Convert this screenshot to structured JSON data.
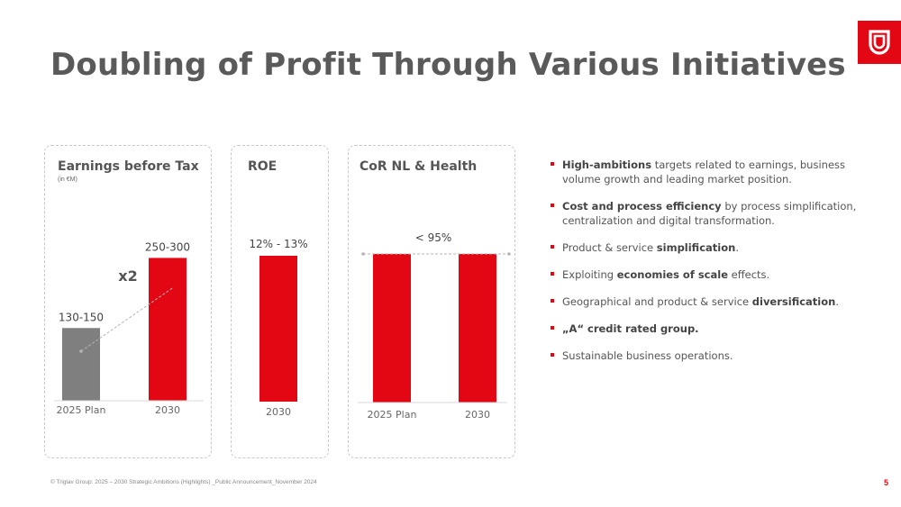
{
  "slide": {
    "title": "Doubling of Profit Through Various Initiatives",
    "footer": "© Triglav Group: 2025 – 2030 Strategic Ambitions (Highlights) _Public Announcement_November 2024",
    "page_number": "5",
    "accent_color": "#e30613"
  },
  "logo": {
    "icon": "triglav-logo-icon"
  },
  "panels": {
    "ebt": {
      "title": "Earnings before Tax",
      "subtitle": "(in €M)",
      "multiplier_label": "x2"
    },
    "roe": {
      "title": "ROE"
    },
    "cor": {
      "title": "CoR NL & Health"
    }
  },
  "chart_data": [
    {
      "type": "bar",
      "title": "Earnings before Tax",
      "subtitle": "(in €M)",
      "categories": [
        "2025 Plan",
        "2030"
      ],
      "data_labels": [
        "130-150",
        "250-300"
      ],
      "values": [
        140,
        275
      ],
      "ylim": [
        0,
        300
      ],
      "colors": [
        "#7f7f7f",
        "#e30613"
      ],
      "annotation": "x2"
    },
    {
      "type": "bar",
      "title": "ROE",
      "categories": [
        "2030"
      ],
      "data_labels": [
        "12% - 13%"
      ],
      "values": [
        12.5
      ],
      "colors": [
        "#e30613"
      ]
    },
    {
      "type": "bar",
      "title": "CoR NL & Health",
      "categories": [
        "2025 Plan",
        "2030"
      ],
      "data_labels": [
        "< 95%"
      ],
      "values": [
        95,
        95
      ],
      "colors": [
        "#e30613",
        "#e30613"
      ]
    }
  ],
  "bullets": [
    {
      "bold": "High-ambitions",
      "pre": "",
      "post": " targets related to earnings, business volume growth and leading market position."
    },
    {
      "bold": "Cost and process efficiency",
      "pre": "",
      "post": " by process simplification, centralization and digital transformation."
    },
    {
      "bold": "simplification",
      "pre": "Product & service ",
      "post": "."
    },
    {
      "bold": "economies of scale",
      "pre": "Exploiting ",
      "post": " effects."
    },
    {
      "bold": "diversification",
      "pre": "Geographical and product & service ",
      "post": "."
    },
    {
      "bold": "„A“ credit rated group.",
      "pre": "",
      "post": ""
    },
    {
      "bold": "",
      "pre": "Sustainable business operations.",
      "post": ""
    }
  ]
}
